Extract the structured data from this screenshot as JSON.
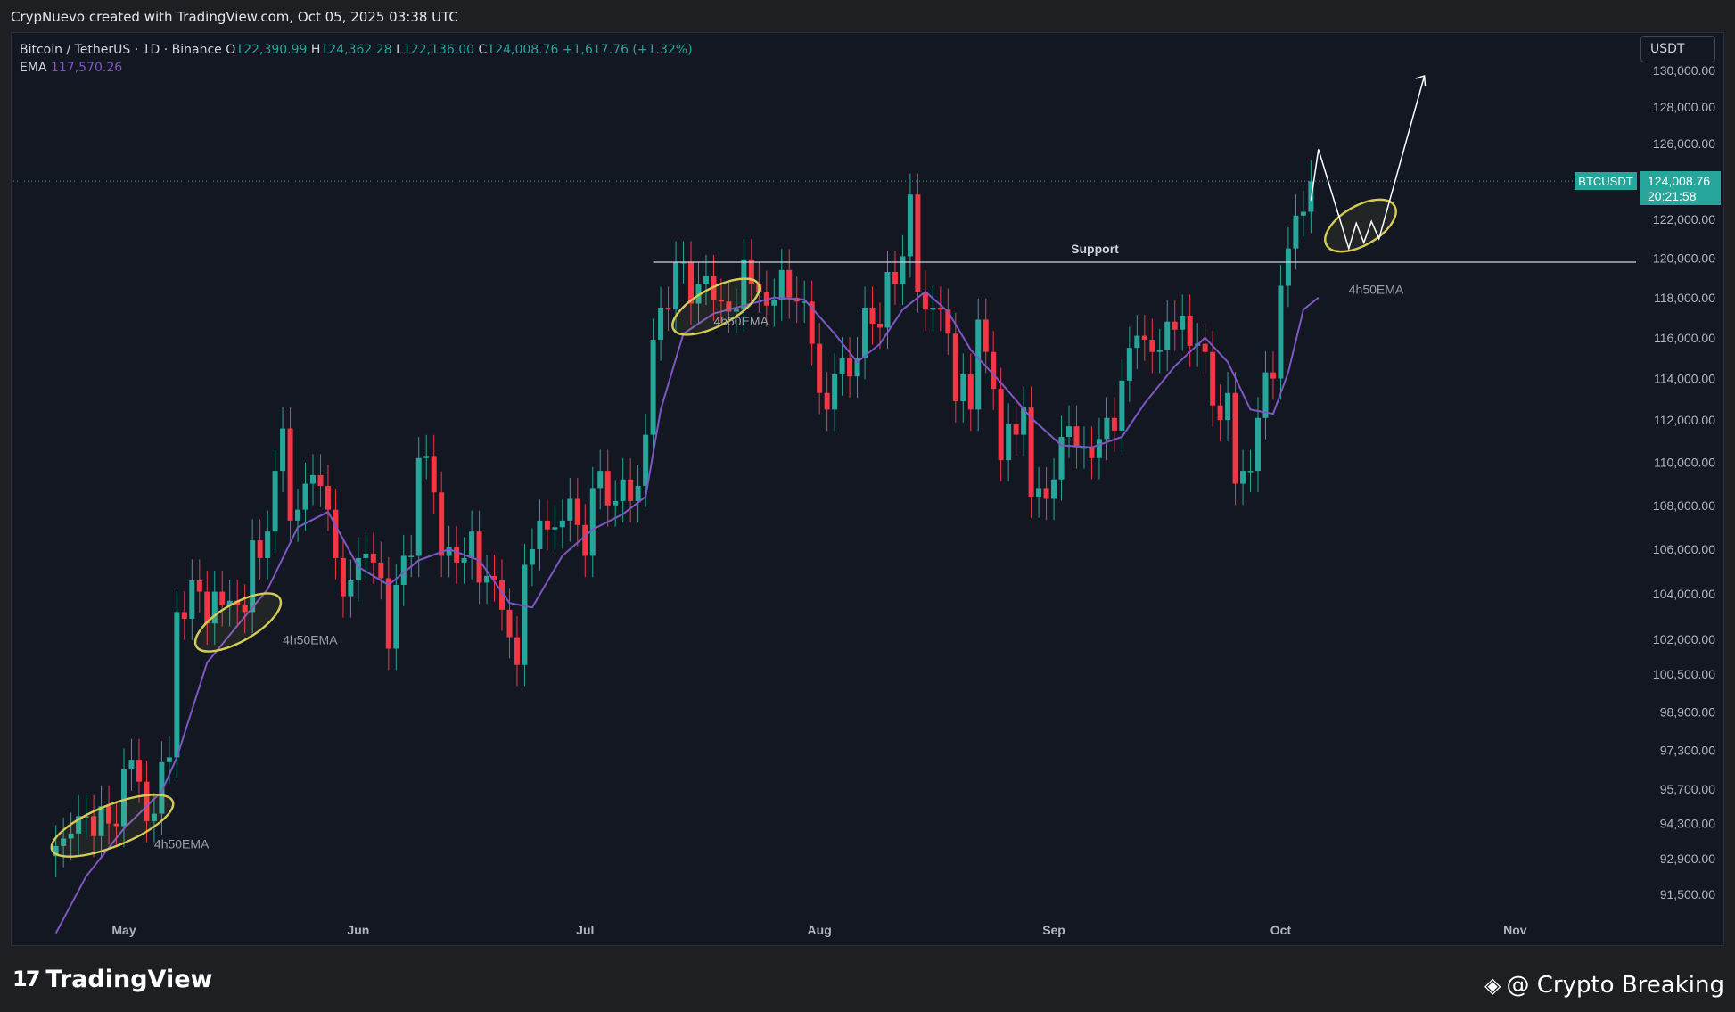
{
  "header": {
    "credit": "CrypNuevo created with TradingView.com, Oct 05, 2025 03:38 UTC"
  },
  "legend": {
    "symbol": "Bitcoin / TetherUS · 1D · Binance",
    "o_label": "O",
    "o_value": "122,390.99",
    "h_label": "H",
    "h_value": "124,362.28",
    "l_label": "L",
    "l_value": "122,136.00",
    "c_label": "C",
    "c_value": "124,008.76",
    "change": "+1,617.76 (+1.32%)",
    "ema_label": "EMA",
    "ema_value": "117,570.26"
  },
  "currency_button": "USDT",
  "price_tag": {
    "symbol": "BTCUSDT",
    "price": "124,008.76",
    "countdown": "20:21:58"
  },
  "footer": {
    "logo_text": "TradingView",
    "watermark": "@ Crypto Breaking"
  },
  "colors": {
    "up": "#26a69a",
    "down": "#f23645",
    "ema": "#7e57c2",
    "annotation": "#d6cc55",
    "background": "#131722"
  },
  "chart_data": {
    "type": "candlestick",
    "title": "Bitcoin / TetherUS · 1D · Binance",
    "y_scale": "log",
    "ylim": [
      90000,
      131000
    ],
    "y_ticks": [
      "130,000.00",
      "128,000.00",
      "126,000.00",
      "124,000.00",
      "122,000.00",
      "120,000.00",
      "118,000.00",
      "116,000.00",
      "114,000.00",
      "112,000.00",
      "110,000.00",
      "108,000.00",
      "106,000.00",
      "104,000.00",
      "102,000.00",
      "100,500.00",
      "98,900.00",
      "97,300.00",
      "95,700.00",
      "94,300.00",
      "92,900.00",
      "91,500.00"
    ],
    "y_tick_values": [
      130000,
      128000,
      126000,
      124000,
      122000,
      120000,
      118000,
      116000,
      114000,
      112000,
      110000,
      108000,
      106000,
      104000,
      102000,
      100500,
      98900,
      97300,
      95700,
      94300,
      92900,
      91500
    ],
    "x_ticks": [
      "May",
      "Jun",
      "Jul",
      "Aug",
      "Sep",
      "Oct",
      "Nov"
    ],
    "x_tick_dates": [
      "2025-05-01",
      "2025-06-01",
      "2025-07-01",
      "2025-08-01",
      "2025-09-01",
      "2025-10-01",
      "2025-11-01"
    ],
    "support_level": 119800,
    "support_label": "Support",
    "support_start": "2025-07-10",
    "last_price": 124008.76,
    "ema_label": "4h50EMA",
    "annotation_labels": [
      {
        "text": "4h50EMA",
        "date": "2025-05-05",
        "price": 93300
      },
      {
        "text": "4h50EMA",
        "date": "2025-05-22",
        "price": 101800
      },
      {
        "text": "4h50EMA",
        "date": "2025-07-18",
        "price": 116600
      },
      {
        "text": "4h50EMA",
        "date": "2025-10-10",
        "price": 118200
      }
    ],
    "projection": [
      {
        "date": "2025-10-05",
        "price": 123000
      },
      {
        "date": "2025-10-06",
        "price": 125700
      },
      {
        "date": "2025-10-10",
        "price": 120500
      },
      {
        "date": "2025-10-11",
        "price": 121800
      },
      {
        "date": "2025-10-12",
        "price": 120800
      },
      {
        "date": "2025-10-13",
        "price": 121900
      },
      {
        "date": "2025-10-14",
        "price": 121000
      },
      {
        "date": "2025-10-20",
        "price": 129700
      }
    ],
    "closes": [
      [
        "2025-04-22",
        93400
      ],
      [
        "2025-04-23",
        93700
      ],
      [
        "2025-04-24",
        93900
      ],
      [
        "2025-04-25",
        94600
      ],
      [
        "2025-04-26",
        94600
      ],
      [
        "2025-04-27",
        93800
      ],
      [
        "2025-04-28",
        95000
      ],
      [
        "2025-04-29",
        94300
      ],
      [
        "2025-04-30",
        94200
      ],
      [
        "2025-05-01",
        96500
      ],
      [
        "2025-05-02",
        96900
      ],
      [
        "2025-05-03",
        96000
      ],
      [
        "2025-05-04",
        94400
      ],
      [
        "2025-05-05",
        94700
      ],
      [
        "2025-05-06",
        96800
      ],
      [
        "2025-05-07",
        97000
      ],
      [
        "2025-05-08",
        103200
      ],
      [
        "2025-05-09",
        102900
      ],
      [
        "2025-05-10",
        104600
      ],
      [
        "2025-05-11",
        104100
      ],
      [
        "2025-05-12",
        102700
      ],
      [
        "2025-05-13",
        104100
      ],
      [
        "2025-05-14",
        103500
      ],
      [
        "2025-05-15",
        103700
      ],
      [
        "2025-05-16",
        103500
      ],
      [
        "2025-05-17",
        103200
      ],
      [
        "2025-05-18",
        106400
      ],
      [
        "2025-05-19",
        105600
      ],
      [
        "2025-05-20",
        106800
      ],
      [
        "2025-05-21",
        109600
      ],
      [
        "2025-05-22",
        111600
      ],
      [
        "2025-05-23",
        107300
      ],
      [
        "2025-05-24",
        107800
      ],
      [
        "2025-05-25",
        109000
      ],
      [
        "2025-05-26",
        109400
      ],
      [
        "2025-05-27",
        108900
      ],
      [
        "2025-05-28",
        107800
      ],
      [
        "2025-05-29",
        105600
      ],
      [
        "2025-05-30",
        103900
      ],
      [
        "2025-05-31",
        104600
      ],
      [
        "2025-06-01",
        105600
      ],
      [
        "2025-06-02",
        105800
      ],
      [
        "2025-06-03",
        105400
      ],
      [
        "2025-06-04",
        104700
      ],
      [
        "2025-06-05",
        101600
      ],
      [
        "2025-06-06",
        104400
      ],
      [
        "2025-06-07",
        105700
      ],
      [
        "2025-06-08",
        105700
      ],
      [
        "2025-06-09",
        110200
      ],
      [
        "2025-06-10",
        110300
      ],
      [
        "2025-06-11",
        108600
      ],
      [
        "2025-06-12",
        105700
      ],
      [
        "2025-06-13",
        106100
      ],
      [
        "2025-06-14",
        105400
      ],
      [
        "2025-06-15",
        105600
      ],
      [
        "2025-06-16",
        106800
      ],
      [
        "2025-06-17",
        104500
      ],
      [
        "2025-06-18",
        104800
      ],
      [
        "2025-06-19",
        104600
      ],
      [
        "2025-06-20",
        103300
      ],
      [
        "2025-06-21",
        102100
      ],
      [
        "2025-06-22",
        100900
      ],
      [
        "2025-06-23",
        105300
      ],
      [
        "2025-06-24",
        106000
      ],
      [
        "2025-06-25",
        107300
      ],
      [
        "2025-06-26",
        106900
      ],
      [
        "2025-06-27",
        107000
      ],
      [
        "2025-06-28",
        107300
      ],
      [
        "2025-06-29",
        108300
      ],
      [
        "2025-06-30",
        107100
      ],
      [
        "2025-07-01",
        105700
      ],
      [
        "2025-07-02",
        108800
      ],
      [
        "2025-07-03",
        109600
      ],
      [
        "2025-07-04",
        108000
      ],
      [
        "2025-07-05",
        108200
      ],
      [
        "2025-07-06",
        109200
      ],
      [
        "2025-07-07",
        108200
      ],
      [
        "2025-07-08",
        108900
      ],
      [
        "2025-07-09",
        111300
      ],
      [
        "2025-07-10",
        115900
      ],
      [
        "2025-07-11",
        117500
      ],
      [
        "2025-07-12",
        117400
      ],
      [
        "2025-07-13",
        119800
      ],
      [
        "2025-07-14",
        119800
      ],
      [
        "2025-07-15",
        117700
      ],
      [
        "2025-07-16",
        118700
      ],
      [
        "2025-07-17",
        119100
      ],
      [
        "2025-07-18",
        117900
      ],
      [
        "2025-07-19",
        117800
      ],
      [
        "2025-07-20",
        117300
      ],
      [
        "2025-07-21",
        117400
      ],
      [
        "2025-07-22",
        119900
      ],
      [
        "2025-07-23",
        118700
      ],
      [
        "2025-07-24",
        118300
      ],
      [
        "2025-07-25",
        117600
      ],
      [
        "2025-07-26",
        117900
      ],
      [
        "2025-07-27",
        119400
      ],
      [
        "2025-07-28",
        118000
      ],
      [
        "2025-07-29",
        117800
      ],
      [
        "2025-07-30",
        117800
      ],
      [
        "2025-07-31",
        115700
      ],
      [
        "2025-08-01",
        113300
      ],
      [
        "2025-08-02",
        112500
      ],
      [
        "2025-08-03",
        114200
      ],
      [
        "2025-08-04",
        115000
      ],
      [
        "2025-08-05",
        114100
      ],
      [
        "2025-08-06",
        115000
      ],
      [
        "2025-08-07",
        117500
      ],
      [
        "2025-08-08",
        116700
      ],
      [
        "2025-08-09",
        116500
      ],
      [
        "2025-08-10",
        119300
      ],
      [
        "2025-08-11",
        118700
      ],
      [
        "2025-08-12",
        120100
      ],
      [
        "2025-08-13",
        123300
      ],
      [
        "2025-08-14",
        118300
      ],
      [
        "2025-08-15",
        117400
      ],
      [
        "2025-08-16",
        117500
      ],
      [
        "2025-08-17",
        117400
      ],
      [
        "2025-08-18",
        116200
      ],
      [
        "2025-08-19",
        112900
      ],
      [
        "2025-08-20",
        114200
      ],
      [
        "2025-08-21",
        112500
      ],
      [
        "2025-08-22",
        116900
      ],
      [
        "2025-08-23",
        115300
      ],
      [
        "2025-08-24",
        113500
      ],
      [
        "2025-08-25",
        110100
      ],
      [
        "2025-08-26",
        111800
      ],
      [
        "2025-08-27",
        111300
      ],
      [
        "2025-08-28",
        112600
      ],
      [
        "2025-08-29",
        108400
      ],
      [
        "2025-08-30",
        108800
      ],
      [
        "2025-08-31",
        108300
      ],
      [
        "2025-09-01",
        109200
      ],
      [
        "2025-09-02",
        111200
      ],
      [
        "2025-09-03",
        111700
      ],
      [
        "2025-09-04",
        110700
      ],
      [
        "2025-09-05",
        110700
      ],
      [
        "2025-09-06",
        110200
      ],
      [
        "2025-09-07",
        111100
      ],
      [
        "2025-09-08",
        112100
      ],
      [
        "2025-09-09",
        111500
      ],
      [
        "2025-09-10",
        113900
      ],
      [
        "2025-09-11",
        115500
      ],
      [
        "2025-09-12",
        116100
      ],
      [
        "2025-09-13",
        115900
      ],
      [
        "2025-09-14",
        115300
      ],
      [
        "2025-09-15",
        115400
      ],
      [
        "2025-09-16",
        116800
      ],
      [
        "2025-09-17",
        116400
      ],
      [
        "2025-09-18",
        117100
      ],
      [
        "2025-09-19",
        115600
      ],
      [
        "2025-09-20",
        115700
      ],
      [
        "2025-09-21",
        115300
      ],
      [
        "2025-09-22",
        112700
      ],
      [
        "2025-09-23",
        112000
      ],
      [
        "2025-09-24",
        113300
      ],
      [
        "2025-09-25",
        109000
      ],
      [
        "2025-09-26",
        109600
      ],
      [
        "2025-09-27",
        109600
      ],
      [
        "2025-09-28",
        112100
      ],
      [
        "2025-09-29",
        114300
      ],
      [
        "2025-09-30",
        114000
      ],
      [
        "2025-10-01",
        118600
      ],
      [
        "2025-10-02",
        120500
      ],
      [
        "2025-10-03",
        122200
      ],
      [
        "2025-10-04",
        122400
      ],
      [
        "2025-10-05",
        124000
      ]
    ],
    "ema": [
      [
        "2025-04-22",
        90000
      ],
      [
        "2025-04-26",
        92200
      ],
      [
        "2025-05-01",
        94100
      ],
      [
        "2025-05-06",
        95600
      ],
      [
        "2025-05-08",
        97000
      ],
      [
        "2025-05-12",
        101000
      ],
      [
        "2025-05-16",
        102600
      ],
      [
        "2025-05-20",
        104200
      ],
      [
        "2025-05-24",
        107000
      ],
      [
        "2025-05-28",
        107700
      ],
      [
        "2025-06-01",
        105200
      ],
      [
        "2025-06-05",
        104400
      ],
      [
        "2025-06-09",
        105500
      ],
      [
        "2025-06-13",
        106000
      ],
      [
        "2025-06-17",
        105500
      ],
      [
        "2025-06-21",
        103600
      ],
      [
        "2025-06-24",
        103400
      ],
      [
        "2025-06-28",
        105700
      ],
      [
        "2025-07-02",
        106900
      ],
      [
        "2025-07-06",
        107600
      ],
      [
        "2025-07-09",
        108400
      ],
      [
        "2025-07-11",
        112500
      ],
      [
        "2025-07-14",
        116200
      ],
      [
        "2025-07-18",
        117200
      ],
      [
        "2025-07-22",
        117600
      ],
      [
        "2025-07-26",
        118000
      ],
      [
        "2025-07-30",
        117900
      ],
      [
        "2025-08-03",
        116200
      ],
      [
        "2025-08-06",
        114800
      ],
      [
        "2025-08-09",
        115700
      ],
      [
        "2025-08-12",
        117400
      ],
      [
        "2025-08-15",
        118300
      ],
      [
        "2025-08-18",
        117300
      ],
      [
        "2025-08-21",
        115400
      ],
      [
        "2025-08-25",
        113800
      ],
      [
        "2025-08-29",
        112100
      ],
      [
        "2025-09-02",
        110800
      ],
      [
        "2025-09-06",
        110700
      ],
      [
        "2025-09-10",
        111200
      ],
      [
        "2025-09-13",
        112800
      ],
      [
        "2025-09-17",
        114600
      ],
      [
        "2025-09-21",
        116000
      ],
      [
        "2025-09-24",
        114800
      ],
      [
        "2025-09-27",
        112500
      ],
      [
        "2025-09-30",
        112300
      ],
      [
        "2025-10-02",
        114300
      ],
      [
        "2025-10-04",
        117400
      ],
      [
        "2025-10-06",
        118000
      ]
    ]
  }
}
